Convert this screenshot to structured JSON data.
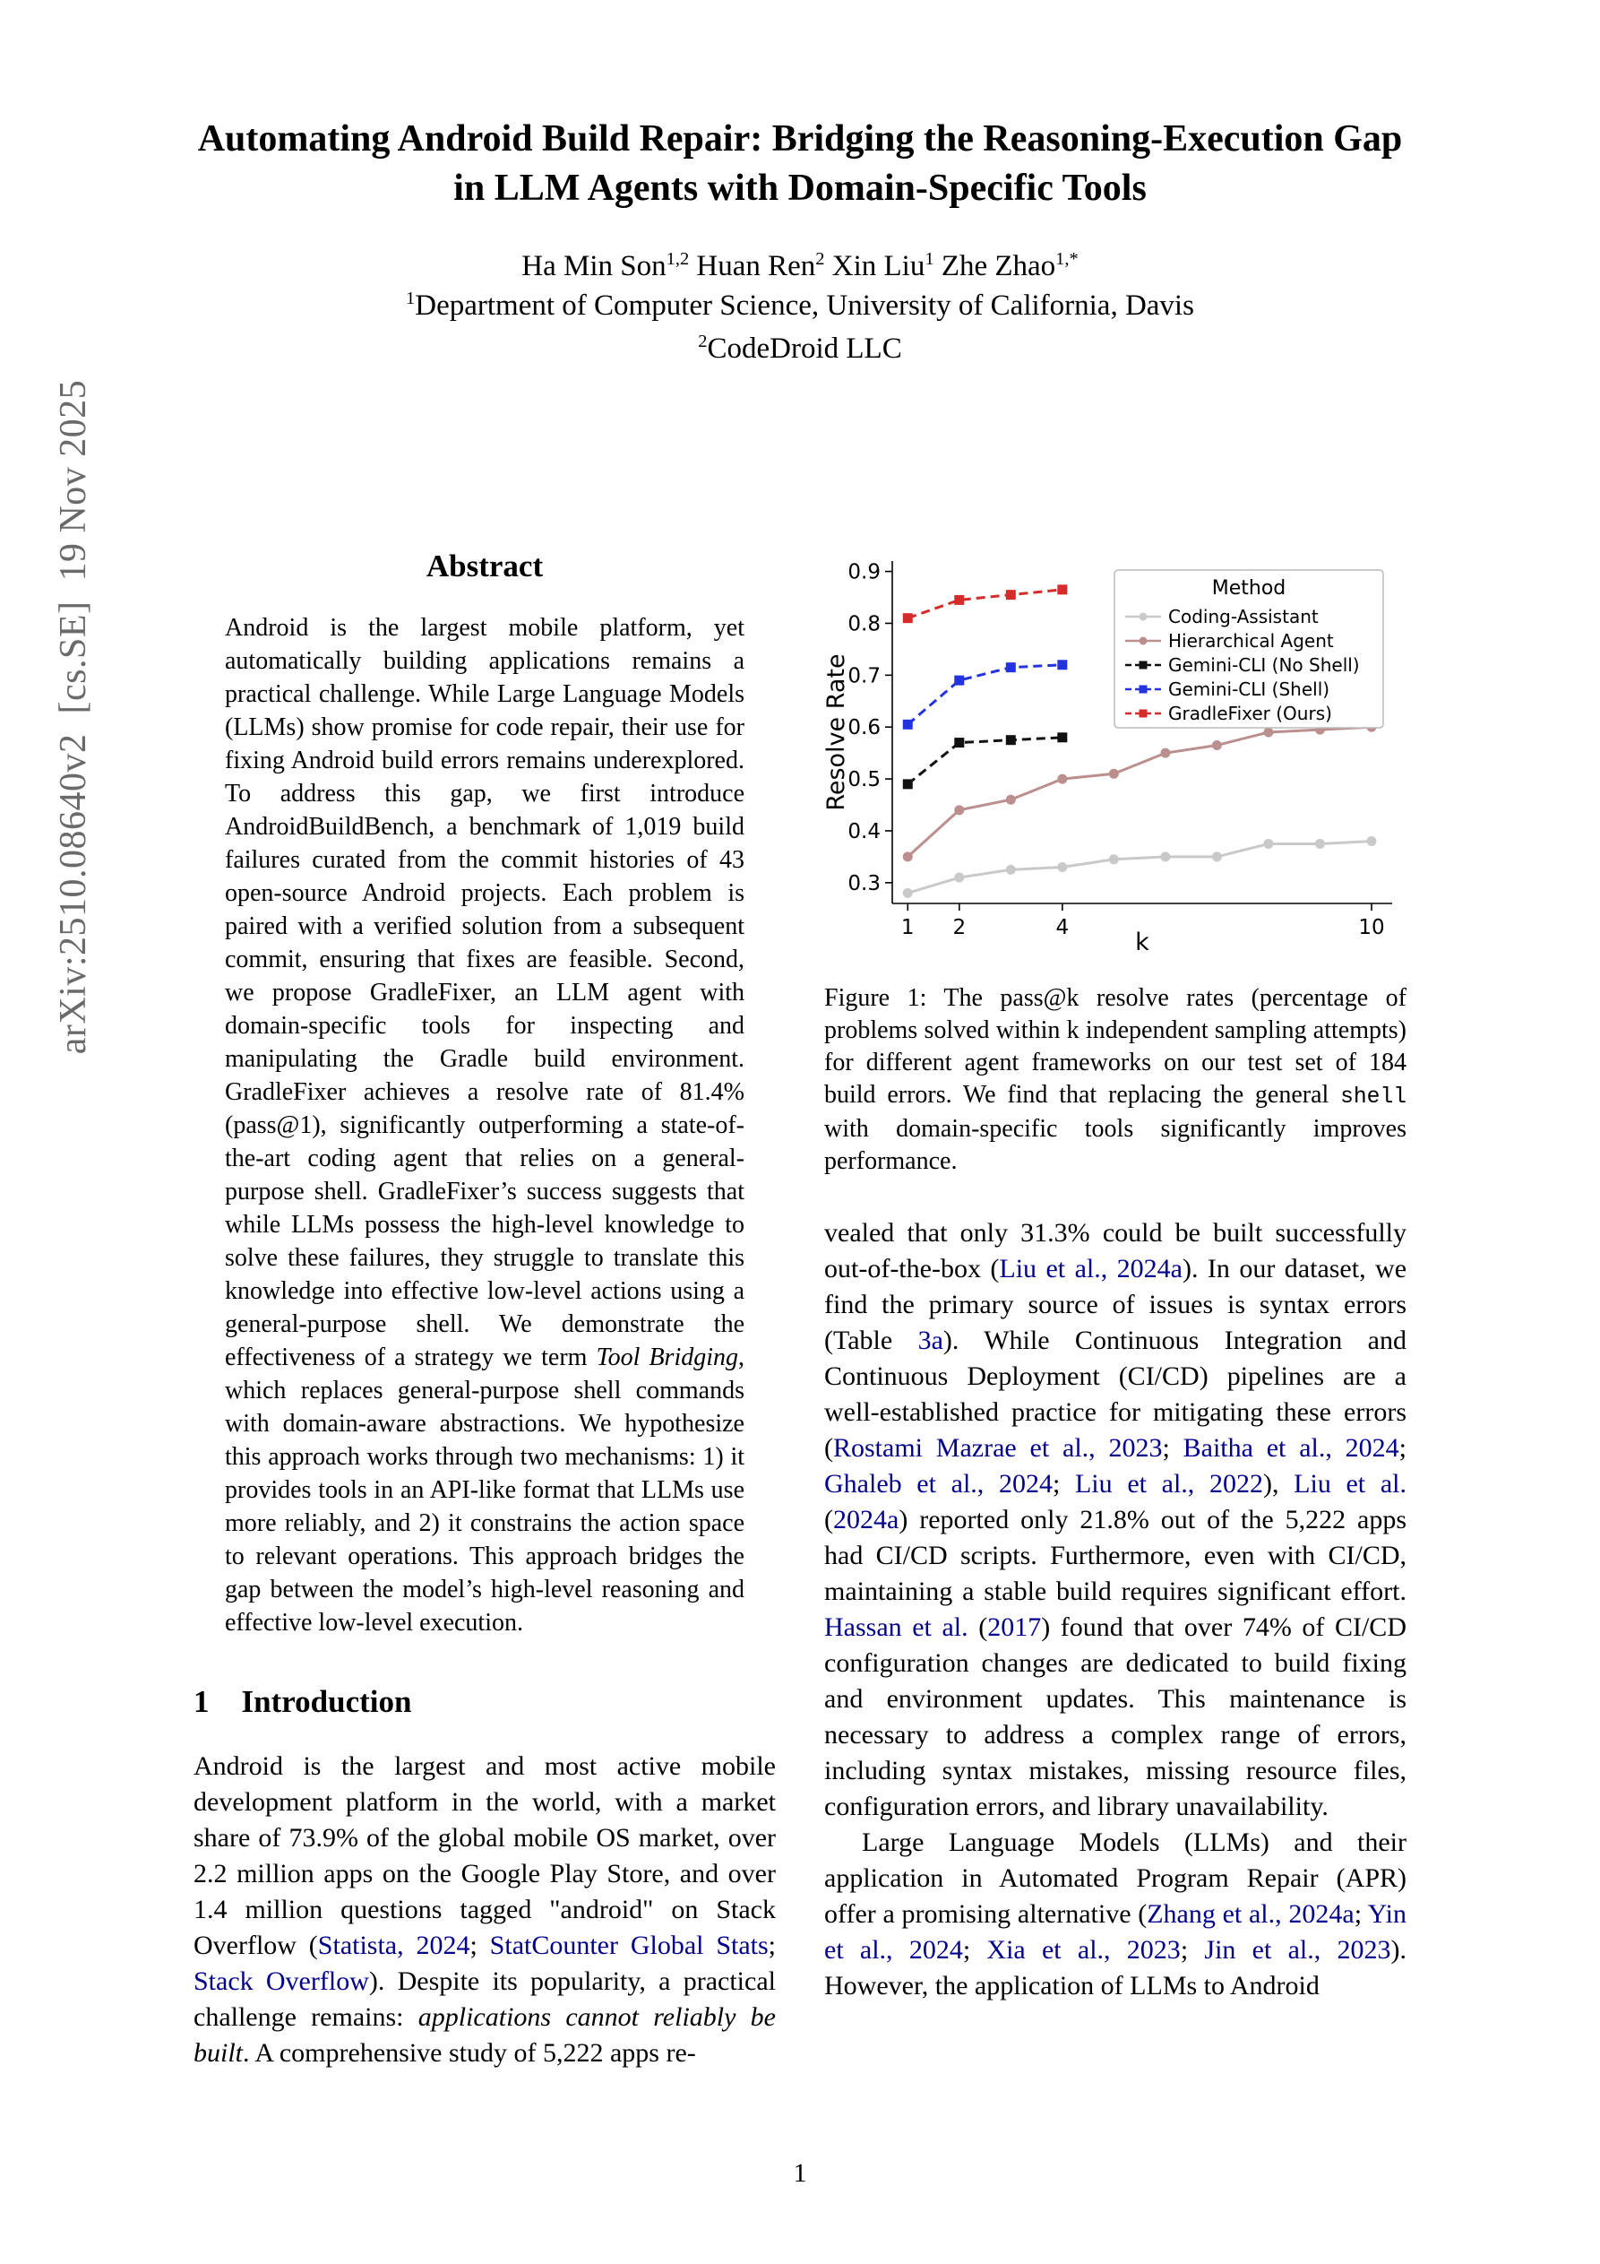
{
  "page": {
    "number": "1"
  },
  "watermark": {
    "text": "arXiv:2510.08640v2  [cs.SE]  19 Nov 2025"
  },
  "header": {
    "title_line1": "Automating Android Build Repair: Bridging the Reasoning-Execution Gap",
    "title_line2": "in LLM Agents with Domain-Specific Tools",
    "authors": [
      {
        "text": "Ha Min Son"
      },
      {
        "text": "1,2",
        "style": "sup"
      },
      {
        "text": " Huan Ren"
      },
      {
        "text": "2",
        "style": "sup"
      },
      {
        "text": " Xin Liu"
      },
      {
        "text": "1",
        "style": "sup"
      },
      {
        "text": " Zhe Zhao"
      },
      {
        "text": "1,*",
        "style": "sup"
      }
    ],
    "affiliation1": [
      {
        "text": "1",
        "style": "sup"
      },
      {
        "text": "Department of Computer Science, University of California, Davis"
      }
    ],
    "affiliation2": [
      {
        "text": "2",
        "style": "sup"
      },
      {
        "text": "CodeDroid LLC"
      }
    ]
  },
  "abstract": {
    "heading": "Abstract",
    "body": [
      {
        "text": "Android is the largest mobile platform, yet automatically building applications remains a practical challenge. While Large Language Models (LLMs) show promise for code repair, their use for fixing Android build errors remains underexplored. To address this gap, we first introduce AndroidBuildBench, a benchmark of 1,019 build failures curated from the commit histories of 43 open-source Android projects. Each problem is paired with a verified solution from a subsequent commit, ensuring that fixes are feasible. Second, we propose GradleFixer, an LLM agent with domain-specific tools for inspecting and manipulating the Gradle build environment. GradleFixer achieves a resolve rate of 81.4% (pass@1), significantly outperforming a state-of-the-art coding agent that relies on a general-purpose shell. GradleFixer’s success suggests that while LLMs possess the high-level knowledge to solve these failures, they struggle to translate this knowledge into effective low-level actions using a general-purpose shell. We demonstrate the effectiveness of a strategy we term "
      },
      {
        "text": "Tool Bridging",
        "style": "italic"
      },
      {
        "text": ", which replaces general-purpose shell commands with domain-aware abstractions. We hypothesize this approach works through two mechanisms: 1) it provides tools in an API-like format that LLMs use more reliably, and 2) it constrains the action space to relevant operations. This approach bridges the gap between the model’s high-level reasoning and effective low-level execution."
      }
    ]
  },
  "intro": {
    "heading_number": "1",
    "heading_title": "Introduction",
    "p1": [
      {
        "text": "Android is the largest and most active mobile development platform in the world, with a market share of 73.9% of the global mobile OS market, over 2.2 million apps on the Google Play Store, and over 1.4 million questions tagged \"android\" on Stack Overflow ("
      },
      {
        "text": "Statista",
        "style": "link"
      },
      {
        "text": ", ",
        "style": "link"
      },
      {
        "text": "2024",
        "style": "link"
      },
      {
        "text": "; "
      },
      {
        "text": "StatCounter Global Stats",
        "style": "link"
      },
      {
        "text": "; "
      },
      {
        "text": "Stack Overflow",
        "style": "link"
      },
      {
        "text": "). Despite its popularity, a practical challenge remains: "
      },
      {
        "text": "applications cannot reliably be built",
        "style": "italic"
      },
      {
        "text": ". A comprehensive study of 5,222 apps re-"
      }
    ]
  },
  "figure": {
    "caption": [
      {
        "text": "Figure 1: The pass@k resolve rates (percentage of problems solved within k independent sampling attempts) for different agent frameworks on our test set of 184 build errors. We find that replacing the general "
      },
      {
        "text": "shell",
        "style": "mono"
      },
      {
        "text": " with domain-specific tools significantly improves performance."
      }
    ]
  },
  "right_column": {
    "p1": [
      {
        "text": "vealed that only 31.3% could be built successfully out-of-the-box ("
      },
      {
        "text": "Liu et al., 2024a",
        "style": "link"
      },
      {
        "text": "). In our dataset, we find the primary source of issues is syntax errors (Table "
      },
      {
        "text": "3a",
        "style": "link"
      },
      {
        "text": "). While Continuous Integration and Continuous Deployment (CI/CD) pipelines are a well-established practice for mitigating these errors ("
      },
      {
        "text": "Rostami Mazrae et al., 2023",
        "style": "link"
      },
      {
        "text": "; "
      },
      {
        "text": "Baitha et al., 2024",
        "style": "link"
      },
      {
        "text": "; "
      },
      {
        "text": "Ghaleb et al., 2024",
        "style": "link"
      },
      {
        "text": "; "
      },
      {
        "text": "Liu et al., 2022",
        "style": "link"
      },
      {
        "text": "), "
      },
      {
        "text": "Liu et al.",
        "style": "link"
      },
      {
        "text": " ("
      },
      {
        "text": "2024a",
        "style": "link"
      },
      {
        "text": ") reported only 21.8% out of the 5,222 apps had CI/CD scripts. Furthermore, even with CI/CD, maintaining a stable build requires significant effort. "
      },
      {
        "text": "Hassan et al.",
        "style": "link"
      },
      {
        "text": " ("
      },
      {
        "text": "2017",
        "style": "link"
      },
      {
        "text": ") found that over 74% of CI/CD configuration changes are dedicated to build fixing and environment updates. This maintenance is necessary to address a complex range of errors, including syntax mistakes, missing resource files, configuration errors, and library unavailability."
      }
    ],
    "p2": [
      {
        "text": "Large Language Models (LLMs) and their application in Automated Program Repair (APR) offer a promising alternative ("
      },
      {
        "text": "Zhang et al., 2024a",
        "style": "link"
      },
      {
        "text": "; "
      },
      {
        "text": "Yin et al., 2024",
        "style": "link"
      },
      {
        "text": "; "
      },
      {
        "text": "Xia et al., 2023",
        "style": "link"
      },
      {
        "text": "; "
      },
      {
        "text": "Jin et al., 2023",
        "style": "link"
      },
      {
        "text": "). However, the application of LLMs to Android"
      }
    ]
  },
  "chart_data": {
    "type": "line",
    "title": "",
    "xlabel": "k",
    "ylabel": "Resolve Rate",
    "xlim": [
      0.7,
      10.4
    ],
    "ylim": [
      0.26,
      0.92
    ],
    "xticks": [
      1,
      2,
      4,
      10
    ],
    "yticks": [
      0.3,
      0.4,
      0.5,
      0.6,
      0.7,
      0.8,
      0.9
    ],
    "legend_title": "Method",
    "legend_position": "upper right",
    "grid": false,
    "series": [
      {
        "name": "Coding-Assistant",
        "color": "#c9c9c9",
        "marker": "circle",
        "dash": "solid",
        "x": [
          1,
          2,
          3,
          4,
          5,
          6,
          7,
          8,
          9,
          10
        ],
        "y": [
          0.28,
          0.31,
          0.325,
          0.33,
          0.345,
          0.35,
          0.35,
          0.375,
          0.375,
          0.38
        ]
      },
      {
        "name": "Hierarchical Agent",
        "color": "#bc8f8f",
        "marker": "circle",
        "dash": "solid",
        "x": [
          1,
          2,
          3,
          4,
          5,
          6,
          7,
          8,
          9,
          10
        ],
        "y": [
          0.35,
          0.44,
          0.46,
          0.5,
          0.51,
          0.55,
          0.565,
          0.59,
          0.595,
          0.6
        ]
      },
      {
        "name": "Gemini-CLI (No Shell)",
        "color": "#111111",
        "marker": "square",
        "dash": "dashed",
        "x": [
          1,
          2,
          3,
          4
        ],
        "y": [
          0.49,
          0.57,
          0.575,
          0.58
        ]
      },
      {
        "name": "Gemini-CLI (Shell)",
        "color": "#2433e0",
        "marker": "square",
        "dash": "dashed",
        "x": [
          1,
          2,
          3,
          4
        ],
        "y": [
          0.605,
          0.69,
          0.715,
          0.72
        ]
      },
      {
        "name": "GradleFixer (Ours)",
        "color": "#d62b2b",
        "marker": "square",
        "dash": "dashed",
        "x": [
          1,
          2,
          3,
          4
        ],
        "y": [
          0.81,
          0.845,
          0.855,
          0.865
        ]
      }
    ]
  }
}
